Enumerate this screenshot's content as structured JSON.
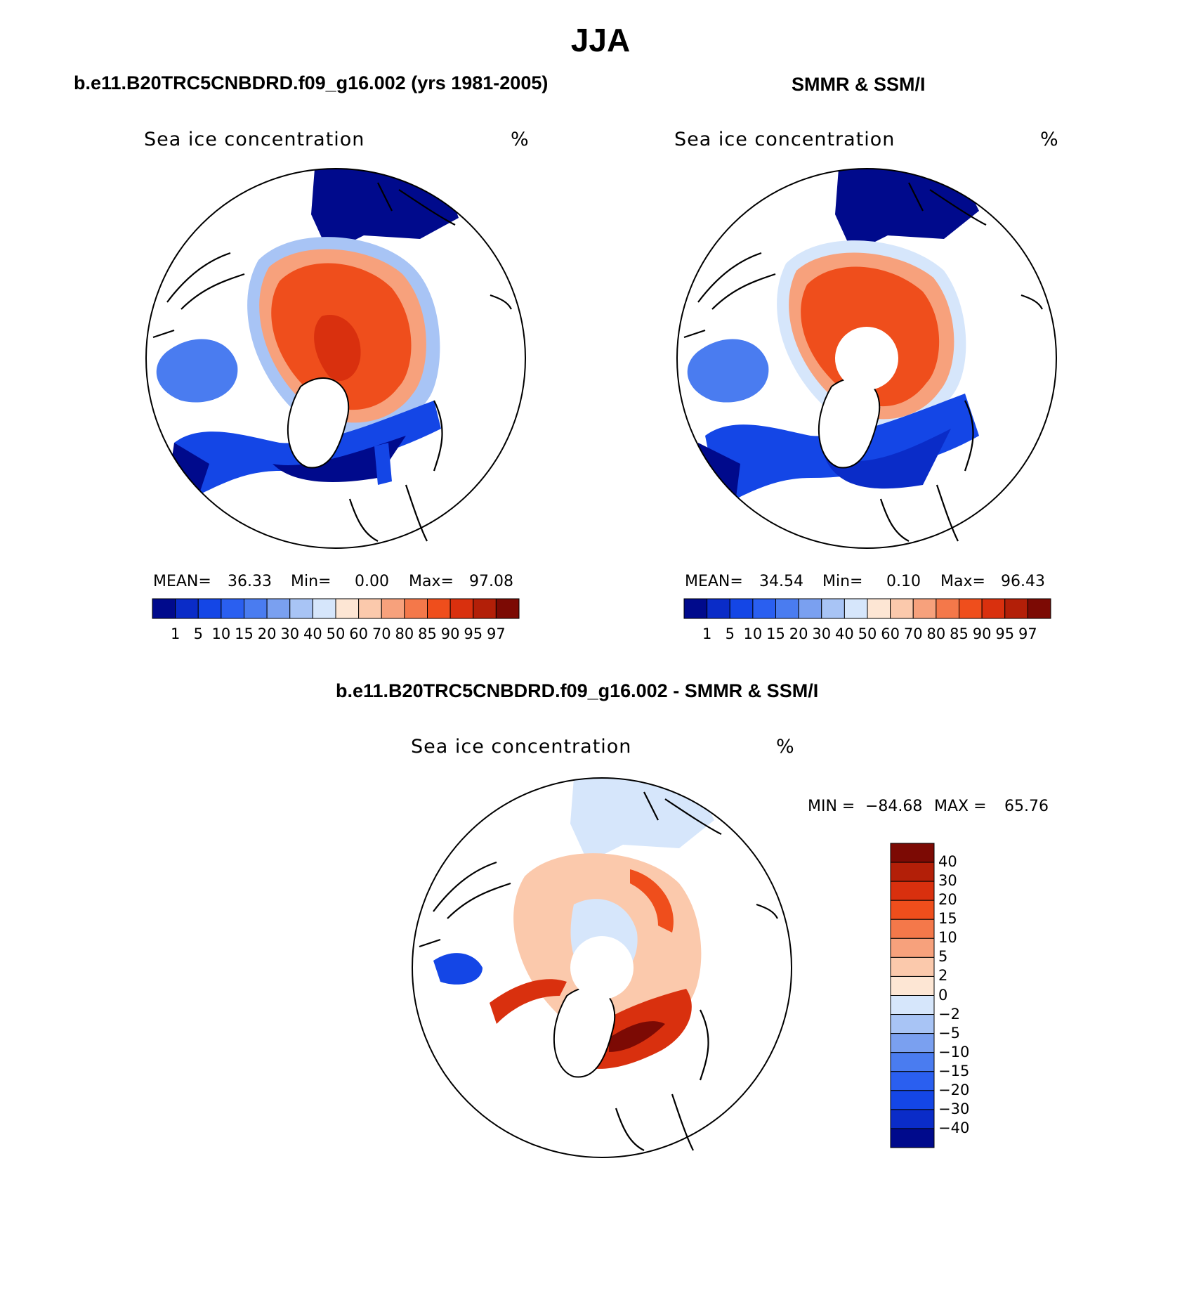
{
  "figure": {
    "season": "JJA",
    "panels": [
      {
        "title": "b.e11.B20TRC5CNBDRD.f09_g16.002 (yrs 1981-2005)",
        "variable": "Sea ice concentration",
        "unit": "%",
        "mean_label": "MEAN=",
        "mean_value": "36.33",
        "min_label": "Min=",
        "min_value": "0.00",
        "max_label": "Max=",
        "max_value": "97.08",
        "pole_hole": false
      },
      {
        "title": "SMMR & SSM/I",
        "variable": "Sea ice concentration",
        "unit": "%",
        "mean_label": "MEAN=",
        "mean_value": "34.54",
        "min_label": "Min=",
        "min_value": "0.10",
        "max_label": "Max=",
        "max_value": "96.43",
        "pole_hole": true
      }
    ],
    "abs_colorbar": {
      "ticks": [
        "1",
        "5",
        "10",
        "15",
        "20",
        "30",
        "40",
        "50",
        "60",
        "70",
        "80",
        "85",
        "90",
        "95",
        "97"
      ],
      "colors": [
        "#000a8c",
        "#0a2cc8",
        "#1446e6",
        "#2a5ff0",
        "#4a7cf0",
        "#7aa0f0",
        "#a8c4f5",
        "#d6e6fb",
        "#fde6d4",
        "#fbc9ac",
        "#f7a17c",
        "#f4784a",
        "#ef4e1c",
        "#d9300e",
        "#b31f08",
        "#7c0a04"
      ]
    },
    "diff_panel": {
      "title": "b.e11.B20TRC5CNBDRD.f09_g16.002 - SMMR & SSM/I",
      "variable": "Sea ice concentration",
      "unit": "%",
      "min_label": "MIN =",
      "min_value": "−84.68",
      "max_label": "MAX =",
      "max_value": "65.76"
    },
    "diff_colorbar": {
      "ticks": [
        "40",
        "30",
        "20",
        "15",
        "10",
        "5",
        "2",
        "0",
        "−2",
        "−5",
        "−10",
        "−15",
        "−20",
        "−30",
        "−40"
      ],
      "colors": [
        "#7c0a04",
        "#b31f08",
        "#d9300e",
        "#ef4e1c",
        "#f4784a",
        "#f7a17c",
        "#fbc9ac",
        "#fde6d4",
        "#d6e6fb",
        "#a8c4f5",
        "#7aa0f0",
        "#4a7cf0",
        "#2a5ff0",
        "#1446e6",
        "#0a2cc8",
        "#000a8c"
      ]
    }
  }
}
